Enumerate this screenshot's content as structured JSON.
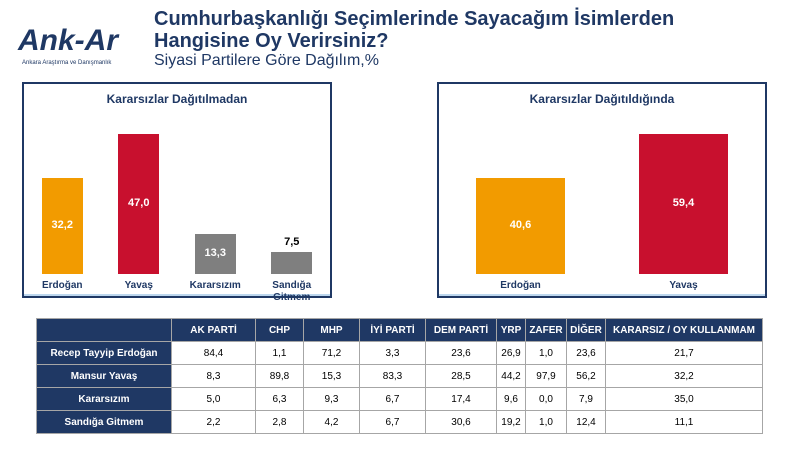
{
  "header": {
    "logo": "Ank-Ar",
    "logo_sub": "Ankara Araştırma ve Danışmanlık",
    "title": "Cumhurbaşkanlığı Seçimlerinde Sayacağım İsimlerden Hangisine Oy Verirsiniz?",
    "subtitle": "Siyasi Partilere Göre Dağılım,%"
  },
  "chart_data": [
    {
      "type": "bar",
      "title": "Kararsızlar Dağıtılmadan",
      "categories": [
        "Erdoğan",
        "Yavaş",
        "Kararsızım",
        "Sandığa Gitmem"
      ],
      "values": [
        32.2,
        47.0,
        13.3,
        7.5
      ],
      "value_labels": [
        "32,2",
        "47,0",
        "13,3",
        "7,5"
      ],
      "colors": [
        "#f29b00",
        "#c8102e",
        "#7f7f7f",
        "#7f7f7f"
      ]
    },
    {
      "type": "bar",
      "title": "Kararsızlar Dağıtıldığında",
      "categories": [
        "Erdoğan",
        "Yavaş"
      ],
      "values": [
        40.6,
        59.4
      ],
      "value_labels": [
        "40,6",
        "59,4"
      ],
      "colors": [
        "#f29b00",
        "#c8102e"
      ]
    }
  ],
  "table": {
    "columns": [
      "AK PARTİ",
      "CHP",
      "MHP",
      "İYİ PARTİ",
      "DEM PARTİ",
      "YRP",
      "ZAFER",
      "DİĞER",
      "KARARSIZ / OY KULLANMAM"
    ],
    "rows": [
      {
        "label": "Recep Tayyip Erdoğan",
        "cells": [
          "84,4",
          "1,1",
          "71,2",
          "3,3",
          "23,6",
          "26,9",
          "1,0",
          "23,6",
          "21,7"
        ]
      },
      {
        "label": "Mansur Yavaş",
        "cells": [
          "8,3",
          "89,8",
          "15,3",
          "83,3",
          "28,5",
          "44,2",
          "97,9",
          "56,2",
          "32,2"
        ]
      },
      {
        "label": "Kararsızım",
        "cells": [
          "5,0",
          "6,3",
          "9,3",
          "6,7",
          "17,4",
          "9,6",
          "0,0",
          "7,9",
          "35,0"
        ]
      },
      {
        "label": "Sandığa Gitmem",
        "cells": [
          "2,2",
          "2,8",
          "4,2",
          "6,7",
          "30,6",
          "19,2",
          "1,0",
          "12,4",
          "11,1"
        ]
      }
    ]
  }
}
